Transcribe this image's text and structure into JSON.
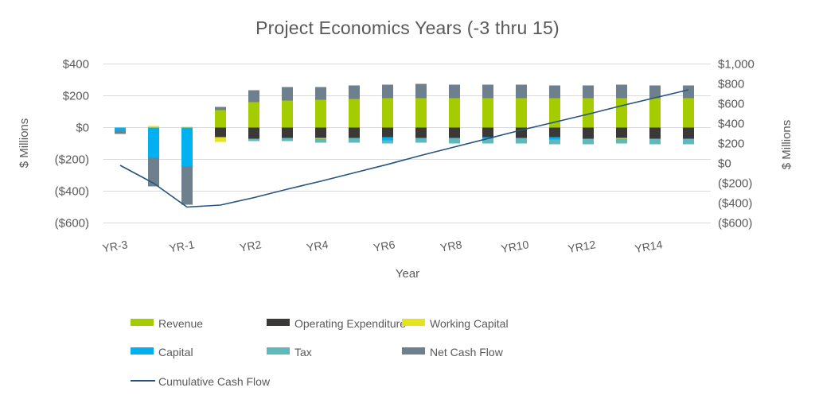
{
  "title": "Project Economics Years (-3 thru 15)",
  "axes": {
    "left_title": "$ Millions",
    "right_title": "$ Millions",
    "x_title": "Year",
    "left_tick_labels": [
      "$400",
      "$200",
      "$0",
      "($200)",
      "($400)",
      "($600)"
    ],
    "left_tick_values": [
      400,
      200,
      0,
      -200,
      -400,
      -600
    ],
    "right_tick_labels": [
      "$1,000",
      "$800",
      "$600",
      "$400",
      "$200",
      "$0",
      "($200)",
      "($400)",
      "($600)"
    ],
    "right_tick_values": [
      1000,
      800,
      600,
      400,
      200,
      0,
      -200,
      -400,
      -600
    ]
  },
  "colors": {
    "revenue": "#A4CC00",
    "operating_expenditure": "#3B3838",
    "working_capital": "#E3E41C",
    "capital": "#00B0F0",
    "tax": "#5FB9BC",
    "net_cash_flow": "#6E7F8D",
    "cumulative_line": "#26547C",
    "gridline": "#D9D9D9",
    "text": "#595959"
  },
  "legend": [
    {
      "label": "Revenue",
      "color": "#A4CC00",
      "kind": "bar"
    },
    {
      "label": "Operating Expenditure",
      "color": "#3B3838",
      "kind": "bar"
    },
    {
      "label": "Working Capital",
      "color": "#E3E41C",
      "kind": "bar"
    },
    {
      "label": "Capital",
      "color": "#00B0F0",
      "kind": "bar"
    },
    {
      "label": "Tax",
      "color": "#5FB9BC",
      "kind": "bar"
    },
    {
      "label": "Net Cash Flow",
      "color": "#6E7F8D",
      "kind": "bar"
    },
    {
      "label": "Cumulative Cash Flow",
      "color": "#26547C",
      "kind": "line"
    }
  ],
  "chart_data": {
    "type": "bar",
    "subtype": "stacked-bar-with-line-combo",
    "title": "Project Economics Years (-3 thru 15)",
    "xlabel": "Year",
    "ylabel_left": "$ Millions",
    "ylabel_right": "$ Millions",
    "ylim_left": [
      -600,
      400
    ],
    "ylim_right": [
      -600,
      1000
    ],
    "grid": true,
    "legend_position": "bottom",
    "categories": [
      "YR-3",
      "YR-2",
      "YR-1",
      "YR1",
      "YR2",
      "YR3",
      "YR4",
      "YR5",
      "YR6",
      "YR7",
      "YR8",
      "YR9",
      "YR10",
      "YR11",
      "YR12",
      "YR13",
      "YR14",
      "YR15"
    ],
    "x_labels_shown": [
      "YR-3",
      "YR-1",
      "YR2",
      "YR4",
      "YR6",
      "YR8",
      "YR10",
      "YR12",
      "YR14"
    ],
    "x_label_every_nth": 2,
    "series": [
      {
        "name": "Revenue",
        "type": "bar",
        "axis": "left",
        "color": "#A4CC00",
        "values": [
          0,
          0,
          0,
          110,
          160,
          170,
          175,
          180,
          185,
          185,
          185,
          185,
          185,
          185,
          185,
          185,
          185,
          185
        ]
      },
      {
        "name": "Operating Expenditure",
        "type": "bar",
        "axis": "left",
        "color": "#3B3838",
        "values": [
          0,
          0,
          0,
          -60,
          -70,
          -65,
          -65,
          -65,
          -60,
          -65,
          -65,
          -60,
          -65,
          -60,
          -70,
          -65,
          -70,
          -70
        ]
      },
      {
        "name": "Working Capital",
        "type": "bar",
        "axis": "left",
        "color": "#E3E41C",
        "values": [
          0,
          10,
          5,
          -30,
          0,
          0,
          -5,
          0,
          0,
          0,
          0,
          0,
          0,
          0,
          0,
          -5,
          0,
          0
        ]
      },
      {
        "name": "Capital",
        "type": "bar",
        "axis": "left",
        "color": "#00B0F0",
        "values": [
          -20,
          -190,
          -245,
          0,
          0,
          0,
          0,
          0,
          -20,
          0,
          0,
          -10,
          0,
          -15,
          0,
          0,
          0,
          0
        ]
      },
      {
        "name": "Tax",
        "type": "bar",
        "axis": "left",
        "color": "#5FB9BC",
        "values": [
          0,
          0,
          0,
          0,
          -15,
          -20,
          -25,
          -30,
          -20,
          -30,
          -35,
          -30,
          -35,
          -30,
          -35,
          -30,
          -35,
          -35
        ]
      },
      {
        "name": "Net Cash Flow",
        "type": "bar",
        "axis": "left",
        "color": "#6E7F8D",
        "values": [
          -20,
          -180,
          -240,
          20,
          75,
          85,
          80,
          85,
          85,
          90,
          85,
          85,
          85,
          80,
          80,
          85,
          80,
          80
        ]
      },
      {
        "name": "Cumulative Cash Flow",
        "type": "line",
        "axis": "right",
        "color": "#26547C",
        "values": [
          -20,
          -200,
          -440,
          -420,
          -345,
          -260,
          -180,
          -95,
          -10,
          80,
          165,
          250,
          335,
          415,
          495,
          580,
          660,
          740
        ]
      }
    ]
  }
}
